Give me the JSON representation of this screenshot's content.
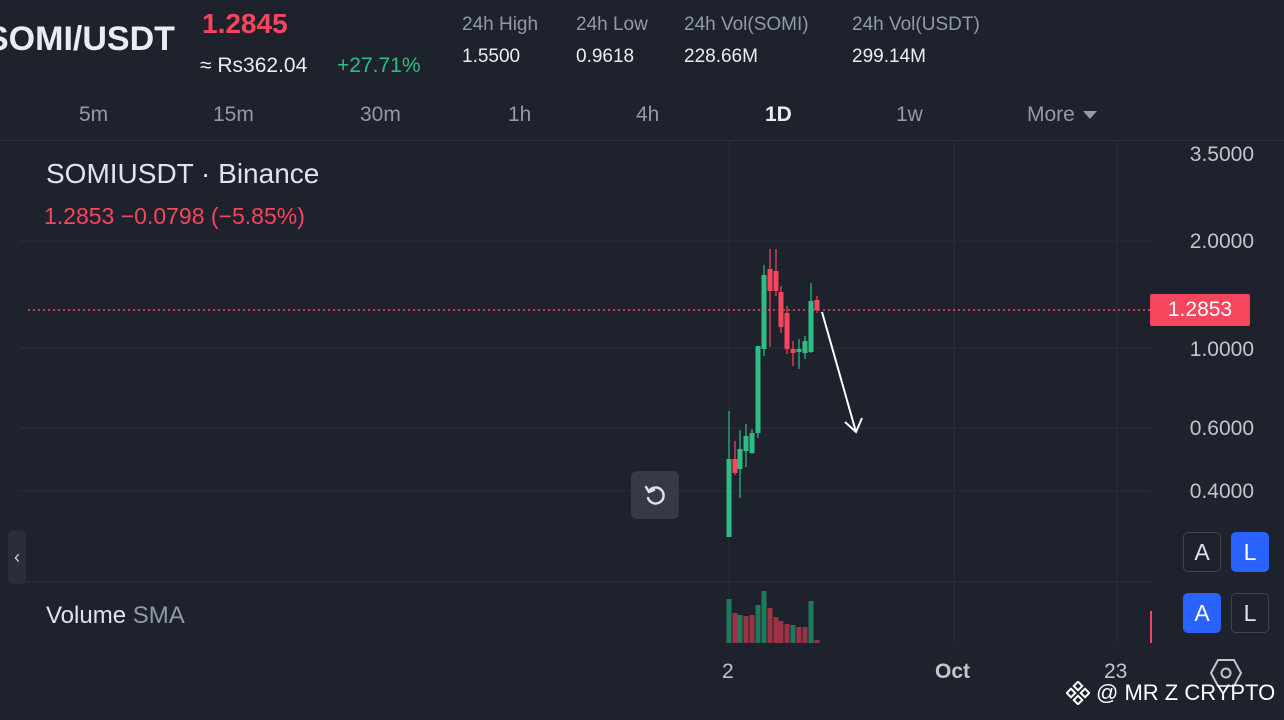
{
  "header": {
    "pair": "SOMI/USDT",
    "last_price": "1.2845",
    "fiat_price": "≈ Rs362.04",
    "change_pct": "+27.71%",
    "stats": [
      {
        "label": "24h High",
        "value": "1.5500"
      },
      {
        "label": "24h Low",
        "value": "0.9618"
      },
      {
        "label": "24h Vol(SOMI)",
        "value": "228.66M"
      },
      {
        "label": "24h Vol(USDT)",
        "value": "299.14M"
      }
    ]
  },
  "timeframes": [
    "5m",
    "15m",
    "30m",
    "1h",
    "4h",
    "1D",
    "1w",
    "More"
  ],
  "active_timeframe": "1D",
  "chart": {
    "symbol_line": "SOMIUSDT · Binance",
    "ohlc_line": "1.2853  −0.0798 (−5.85%)",
    "last_price_tag": "1.2853",
    "price_axis": [
      "3.5000",
      "2.0000",
      "1.0000",
      "0.6000",
      "0.4000"
    ],
    "date_axis": [
      "2",
      "Oct",
      "23"
    ],
    "volume_label": "Volume",
    "volume_sma_label": "SMA",
    "scale_buttons_top": [
      "A",
      "L"
    ],
    "scale_buttons_bottom": [
      "A",
      "L"
    ],
    "up_color": "#2ebd85",
    "down_color": "#f6465d"
  },
  "icons": {
    "reset": "reset-chart-icon",
    "collapse": "chevron-left-icon",
    "settings": "settings-hexagon-icon",
    "more_caret": "caret-down-icon",
    "brand": "binance-logo-icon"
  },
  "watermark": "@ MR Z CRYPTO"
}
